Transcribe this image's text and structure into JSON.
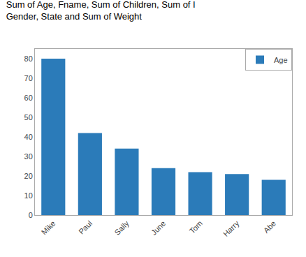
{
  "chart_data": {
    "type": "bar",
    "title": "Sum of Age, Fname, Sum of Children, Sum of I",
    "subtitle": "Gender, State and Sum of Weight",
    "categories": [
      "Mike",
      "Paul",
      "Sally",
      "June",
      "Tom",
      "Harry",
      "Abe"
    ],
    "series": [
      {
        "name": "Age",
        "color": "#2b7bb9",
        "values": [
          80,
          42,
          34,
          24,
          22,
          21,
          18
        ]
      }
    ],
    "ylim": [
      0,
      85
    ],
    "yticks": [
      0,
      10,
      20,
      30,
      40,
      50,
      60,
      70,
      80
    ],
    "grid": false,
    "legend": "upper right"
  }
}
